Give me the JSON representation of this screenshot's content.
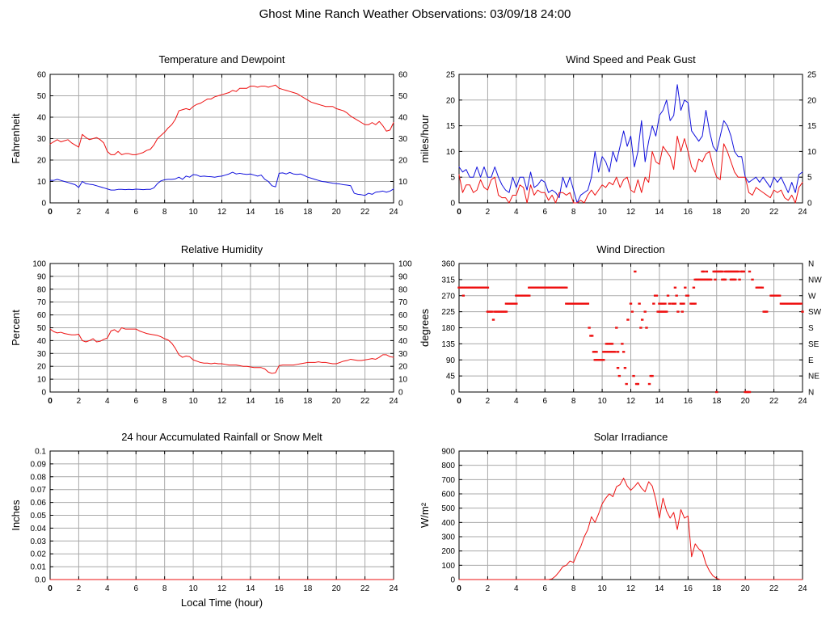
{
  "header": {
    "title": "Ghost Mine Ranch Weather Observations: 03/09/18 24:00"
  },
  "colors": {
    "red_series": "#ee1111",
    "blue_series": "#1111dd",
    "grid": "#a9a9a9",
    "axis": "#000000",
    "background": "#ffffff"
  },
  "chart_data": [
    {
      "id": "temperature",
      "type": "line",
      "title": "Temperature and Dewpoint",
      "ylabel": "Fahrenheit",
      "ylim": [
        0,
        60
      ],
      "ytick_step": 10,
      "mirror": "numeric",
      "xlim": [
        0,
        24
      ],
      "xtick_step": 2,
      "x0": 0,
      "dx": 0.25,
      "series": [
        {
          "name": "temperature",
          "color": "#ee1111",
          "y": [
            27.5,
            28.5,
            29.5,
            28.5,
            29,
            29.5,
            28,
            27,
            26,
            32,
            30.5,
            29.5,
            30,
            30.5,
            29.5,
            28,
            24,
            22.5,
            22.5,
            24,
            22.5,
            23,
            23,
            22.5,
            22.5,
            23,
            23.5,
            24.5,
            25,
            27,
            30,
            31.5,
            33,
            35,
            36.5,
            39,
            43,
            43.5,
            44,
            43.5,
            45,
            46,
            46.5,
            47.5,
            48.5,
            48.5,
            49.5,
            50,
            50.5,
            51,
            51.5,
            52.5,
            52,
            53.5,
            53.5,
            53.5,
            54.5,
            54.5,
            54,
            54.5,
            54.5,
            54,
            54.5,
            55,
            53.5,
            53,
            52.5,
            52,
            51.5,
            51,
            50,
            49,
            48,
            47,
            46.5,
            46,
            45.5,
            45,
            45,
            45,
            44,
            43.5,
            43,
            42,
            40.5,
            39.5,
            38.5,
            37.5,
            36.5,
            36.5,
            37.5,
            36.5,
            38,
            36,
            33.5,
            34,
            37.5
          ]
        },
        {
          "name": "dewpoint",
          "color": "#1111dd",
          "y": [
            10.5,
            10.5,
            11,
            10.5,
            10,
            9.5,
            9,
            8.5,
            7.2,
            10,
            9,
            8.7,
            8.5,
            8,
            7.5,
            7,
            6.5,
            6,
            6,
            6.3,
            6.3,
            6.2,
            6.3,
            6.2,
            6.4,
            6.3,
            6.2,
            6.3,
            6.3,
            7,
            9,
            10.3,
            10.8,
            11,
            11,
            11.2,
            12,
            11,
            12.5,
            12,
            13.2,
            13,
            12.3,
            12.5,
            12.3,
            12.2,
            12,
            12.3,
            12.5,
            13,
            13.5,
            14.3,
            13.5,
            13.8,
            13.5,
            13.3,
            13.5,
            13,
            12.5,
            13,
            11,
            10,
            8,
            7.5,
            13.8,
            14,
            13.5,
            14.2,
            13.5,
            13.3,
            13.5,
            12.8,
            12,
            11.5,
            11,
            10.5,
            10,
            9.8,
            9.5,
            9.2,
            9,
            8.8,
            8.5,
            8.3,
            8,
            4.5,
            4,
            3.8,
            3.5,
            4.5,
            4,
            5,
            5.2,
            5.5,
            5,
            5.5,
            6.5
          ]
        }
      ]
    },
    {
      "id": "wind",
      "type": "line",
      "title": "Wind Speed and Peak Gust",
      "ylabel": "miles/hour",
      "ylim": [
        0,
        25
      ],
      "ytick_step": 5,
      "mirror": "numeric",
      "xlim": [
        0,
        24
      ],
      "xtick_step": 2,
      "x0": 0,
      "dx": 0.25,
      "series": [
        {
          "name": "peak-gust",
          "color": "#1111dd",
          "y": [
            7,
            6,
            6.5,
            5,
            5,
            7,
            5,
            7,
            5,
            5,
            7,
            5,
            3.5,
            2.5,
            2,
            5,
            3,
            5,
            5,
            2.5,
            6,
            3,
            3.5,
            4.5,
            4,
            2,
            2.5,
            2,
            1,
            5,
            3,
            5,
            2.5,
            0,
            1.5,
            2,
            2.5,
            5,
            10,
            6,
            9,
            8,
            6,
            10,
            8,
            11,
            14,
            11,
            13,
            7,
            10,
            16,
            8,
            12,
            15,
            13,
            17,
            18,
            20,
            16,
            17,
            23,
            18,
            20,
            19.5,
            14,
            13,
            12,
            13,
            18,
            14,
            11,
            10,
            13,
            16,
            15,
            13,
            10,
            9,
            9,
            5,
            4,
            4.5,
            5,
            4,
            5,
            4,
            3,
            5,
            4,
            5,
            3.5,
            2,
            4,
            2,
            5.5,
            6
          ]
        },
        {
          "name": "wind-speed",
          "color": "#ee1111",
          "y": [
            5.5,
            2,
            3.5,
            3.5,
            2,
            2.5,
            4.5,
            3,
            2.5,
            4.5,
            5,
            1.5,
            1,
            1,
            0,
            1.5,
            1.5,
            3.5,
            3,
            0,
            3.5,
            1.5,
            2.5,
            2,
            2,
            0.5,
            1.5,
            0,
            2,
            2,
            1.5,
            2,
            0,
            0,
            0.5,
            0,
            1.5,
            2.5,
            1.5,
            2.5,
            3.5,
            3,
            4,
            3.5,
            5,
            3,
            4.5,
            5,
            2.5,
            2,
            4.5,
            2,
            5,
            4,
            10,
            8,
            7.5,
            11,
            10,
            9,
            6.5,
            13,
            10,
            12.5,
            10,
            7,
            6,
            8.5,
            8,
            9.5,
            10,
            7,
            5,
            4.5,
            11.5,
            10,
            8,
            6,
            5,
            5,
            5,
            2,
            1.5,
            3,
            2.5,
            2,
            1.5,
            1,
            2.5,
            2,
            2.5,
            1,
            0.5,
            1.5,
            0,
            3,
            4
          ]
        }
      ]
    },
    {
      "id": "humidity",
      "type": "line",
      "title": "Relative Humidity",
      "ylabel": "Percent",
      "ylim": [
        0,
        100
      ],
      "ytick_step": 10,
      "mirror": "numeric",
      "xlim": [
        0,
        24
      ],
      "xtick_step": 2,
      "x0": 0,
      "dx": 0.25,
      "series": [
        {
          "name": "relative-humidity",
          "color": "#ee1111",
          "y": [
            49,
            47,
            46,
            46.5,
            45.5,
            45,
            44.5,
            44.5,
            45,
            40,
            39,
            40,
            41.5,
            39,
            39.5,
            41,
            42,
            47.5,
            48.5,
            46.5,
            50,
            49,
            49,
            49,
            49,
            47.5,
            46.5,
            45.5,
            45,
            44.5,
            44,
            43,
            41.5,
            40.5,
            38,
            34,
            29,
            27,
            28,
            27.5,
            25,
            24,
            23,
            22.5,
            22.5,
            22,
            22.5,
            22,
            22,
            21.5,
            21,
            21,
            21,
            20.5,
            20,
            20,
            19.5,
            19,
            19,
            19,
            18,
            15.5,
            14.5,
            15,
            20.5,
            21,
            21,
            21,
            21,
            21.5,
            22,
            22.5,
            23,
            23,
            23,
            23.5,
            23,
            23,
            22.5,
            22,
            22,
            23,
            24,
            24.5,
            25.5,
            25,
            24.5,
            24.5,
            25,
            25.5,
            26,
            25.5,
            27,
            29,
            29,
            27.5,
            27
          ]
        }
      ]
    },
    {
      "id": "direction",
      "type": "scatter",
      "title": "Wind Direction",
      "ylabel": "degrees",
      "ylim": [
        0,
        360
      ],
      "ytick_step": 45,
      "mirror": "compass",
      "right_labels": [
        "N",
        "NE",
        "E",
        "SE",
        "S",
        "SW",
        "W",
        "NW",
        "N"
      ],
      "xlim": [
        0,
        24
      ],
      "xtick_step": 2,
      "series": [
        {
          "name": "wind-direction",
          "color": "#ee1111",
          "seg_dx": 0.1,
          "segments": [
            [
              0,
              2,
              292.5
            ],
            [
              2,
              2.3,
              225
            ],
            [
              2.5,
              3.3,
              225
            ],
            [
              3.3,
              4,
              247.5
            ],
            [
              4,
              4.9,
              270
            ],
            [
              4.9,
              7.5,
              292.5
            ],
            [
              7.5,
              9,
              247.5
            ],
            [
              9.4,
              9.6,
              112.5
            ],
            [
              9.5,
              10.1,
              90
            ],
            [
              10.1,
              10.8,
              112.5
            ],
            [
              10.3,
              10.7,
              135
            ],
            [
              13.9,
              14.5,
              225
            ],
            [
              14,
              14.4,
              247.5
            ],
            [
              14.9,
              15.1,
              247.5
            ],
            [
              15.5,
              15.7,
              247.5
            ],
            [
              16.2,
              16.5,
              247.5
            ],
            [
              16.6,
              17.6,
              315
            ],
            [
              17.8,
              18.4,
              337.5
            ],
            [
              18.4,
              18.6,
              315
            ],
            [
              18.6,
              19.5,
              337.5
            ],
            [
              19,
              19.3,
              315
            ],
            [
              20,
              20.3,
              0
            ],
            [
              20.8,
              21.2,
              292.5
            ],
            [
              21.3,
              21.5,
              225
            ],
            [
              21.8,
              22.4,
              270
            ],
            [
              22.5,
              23.9,
              247.5
            ]
          ],
          "dots": [
            [
              0.3,
              270
            ],
            [
              2.4,
              202.5
            ],
            [
              9.1,
              180
            ],
            [
              9.2,
              157.5
            ],
            [
              9.3,
              157.5
            ],
            [
              10.9,
              112.5
            ],
            [
              11,
              180
            ],
            [
              11.1,
              112.5
            ],
            [
              11.1,
              67.5
            ],
            [
              11.2,
              45
            ],
            [
              11.4,
              135
            ],
            [
              11.5,
              112.5
            ],
            [
              11.6,
              67.5
            ],
            [
              11.7,
              22.5
            ],
            [
              11.8,
              202.5
            ],
            [
              12,
              247.5
            ],
            [
              12.1,
              225
            ],
            [
              12.2,
              45
            ],
            [
              12.3,
              337.5
            ],
            [
              12.4,
              22.5
            ],
            [
              12.5,
              22.5
            ],
            [
              12.6,
              247.5
            ],
            [
              12.7,
              180
            ],
            [
              12.8,
              202.5
            ],
            [
              13,
              225
            ],
            [
              13.1,
              180
            ],
            [
              13.3,
              22.5
            ],
            [
              13.4,
              45
            ],
            [
              13.5,
              45
            ],
            [
              13.6,
              247.5
            ],
            [
              13.7,
              270
            ],
            [
              13.8,
              270
            ],
            [
              14.6,
              270
            ],
            [
              14.7,
              247.5
            ],
            [
              15.1,
              292.5
            ],
            [
              15.2,
              270
            ],
            [
              15.3,
              225
            ],
            [
              15.6,
              225
            ],
            [
              15.8,
              292.5
            ],
            [
              15.9,
              270
            ],
            [
              16,
              270
            ],
            [
              16.4,
              292.5
            ],
            [
              16.5,
              315
            ],
            [
              17,
              337.5
            ],
            [
              17.1,
              337.5
            ],
            [
              17.3,
              337.5
            ],
            [
              17.9,
              315
            ],
            [
              18,
              0
            ],
            [
              19.6,
              315
            ],
            [
              19.7,
              337.5
            ],
            [
              19.8,
              337.5
            ],
            [
              19.9,
              337.5
            ],
            [
              20.3,
              337.5
            ],
            [
              20.5,
              315
            ],
            [
              24,
              225
            ]
          ]
        }
      ]
    },
    {
      "id": "rain",
      "type": "line",
      "title": "24 hour Accumulated Rainfall or Snow Melt",
      "ylabel": "Inches",
      "xlabel": "Local Time (hour)",
      "ylim": [
        0,
        0.1
      ],
      "ytick_step": 0.01,
      "ytick_labels": [
        "0.0",
        "0.01",
        "0.02",
        "0.03",
        "0.04",
        "0.05",
        "0.06",
        "0.07",
        "0.08",
        "0.09",
        "0.1"
      ],
      "mirror": "none",
      "xlim": [
        0,
        24
      ],
      "xtick_step": 2,
      "x0": 0,
      "dx": 24,
      "series": [
        {
          "name": "accumulated-rainfall",
          "color": "#ee1111",
          "y": [
            0,
            0
          ]
        }
      ]
    },
    {
      "id": "solar",
      "type": "line",
      "title": "Solar Irradiance",
      "ylabel": "W/m²",
      "ylim": [
        0,
        900
      ],
      "ytick_step": 100,
      "mirror": "none",
      "xlim": [
        0,
        24
      ],
      "xtick_step": 2,
      "x0": 0,
      "dx": 0.25,
      "series": [
        {
          "name": "solar-irradiance",
          "color": "#ee1111",
          "y": [
            0,
            0,
            0,
            0,
            0,
            0,
            0,
            0,
            0,
            0,
            0,
            0,
            0,
            0,
            0,
            0,
            0,
            0,
            0,
            0,
            0,
            0,
            0,
            0,
            0,
            0,
            5,
            25,
            55,
            90,
            100,
            130,
            120,
            180,
            230,
            300,
            350,
            440,
            400,
            460,
            530,
            570,
            600,
            580,
            650,
            665,
            710,
            655,
            625,
            650,
            680,
            640,
            615,
            685,
            655,
            560,
            430,
            570,
            480,
            430,
            470,
            350,
            490,
            430,
            445,
            160,
            250,
            215,
            195,
            110,
            60,
            25,
            8,
            0,
            0,
            0,
            0,
            0,
            0,
            0,
            0,
            0,
            0,
            0,
            0,
            0,
            0,
            0,
            0,
            0,
            0,
            0,
            0,
            0,
            0,
            0,
            0
          ]
        }
      ]
    }
  ]
}
